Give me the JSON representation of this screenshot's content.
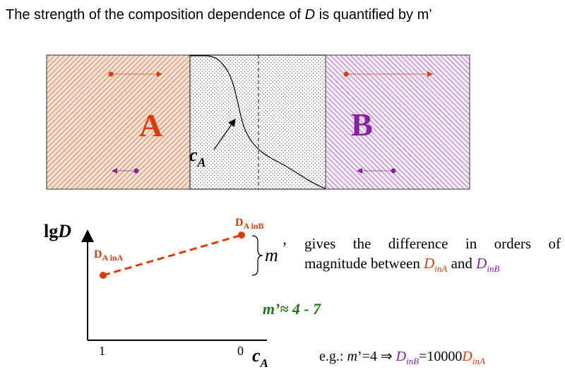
{
  "title": {
    "prefix": "The strength of the composition dependence of ",
    "symbol": "D",
    "suffix": " is quantified by m’"
  },
  "diagram": {
    "label_a": "A",
    "label_b": "B",
    "curve_label_main": "c",
    "curve_label_sub": "A"
  },
  "plot": {
    "y_axis_main": "lg",
    "y_axis_symbol": "D",
    "x_axis_main": "c",
    "x_axis_sub": "A",
    "tick_left": "1",
    "tick_right": "0",
    "point_left_main": "D",
    "point_left_sub": "A inA",
    "point_right_main": "D",
    "point_right_sub": "A inB",
    "m_label": "m",
    "m_prime": "’"
  },
  "description": {
    "line1_words": [
      "gives",
      "the",
      "difference",
      "in",
      "orders",
      "of"
    ],
    "line2_prefix": "magnitude between ",
    "d_in_a_main": "D",
    "d_in_a_sub": "inA",
    "and": " and ",
    "d_in_b_main": "D",
    "d_in_b_sub": "inB"
  },
  "m_range": "m’≈ 4 - 7",
  "example": {
    "prefix": "e.g.: ",
    "m": "m",
    "eq": "’=4 ⇒ ",
    "d_b_main": "D",
    "d_b_sub": "inB",
    "value": "=10000",
    "d_a_main": "D",
    "d_a_sub": "inA"
  },
  "colors": {
    "red": "#e23a06",
    "purple": "#8a1fa0",
    "green": "#1a7a10",
    "a_fill": "#f3e1d0",
    "b_fill": "#f2e6f6"
  }
}
